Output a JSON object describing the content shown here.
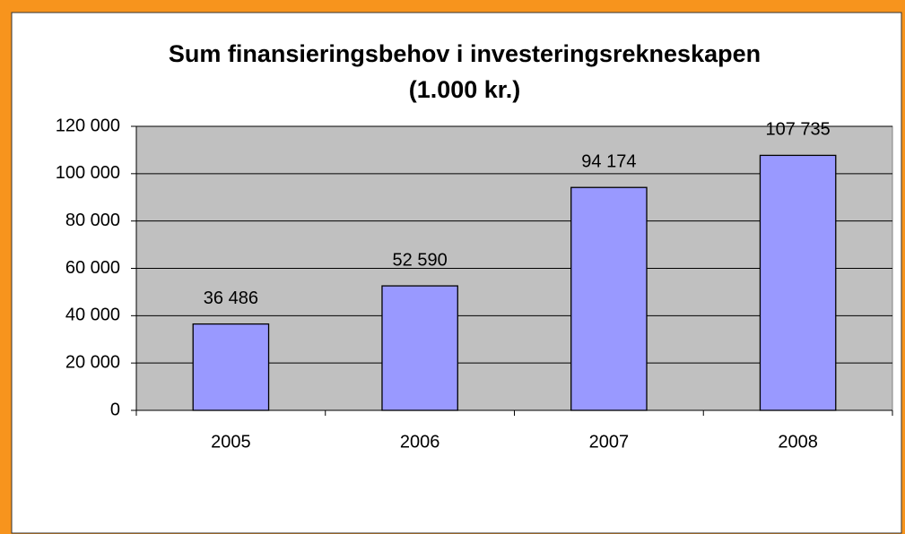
{
  "chart_data": {
    "type": "bar",
    "title": [
      "Sum finansieringsbehov i investeringsrekneskapen",
      "(1.000 kr.)"
    ],
    "categories": [
      "2005",
      "2006",
      "2007",
      "2008"
    ],
    "values": [
      36486,
      52590,
      94174,
      107735
    ],
    "value_labels": [
      "36 486",
      "52 590",
      "94 174",
      "107 735"
    ],
    "color": "#9999ff",
    "ylim": [
      0,
      120000
    ],
    "yticks": [
      0,
      {
        "value": 20000,
        "label": "20 000"
      },
      {
        "value": 40000,
        "label": "40 000"
      },
      {
        "value": 60000,
        "label": "60 000"
      },
      {
        "value": 80000,
        "label": "80 000"
      },
      {
        "value": 100000,
        "label": "100 000"
      },
      {
        "value": 120000,
        "label": "120 000"
      }
    ],
    "grid": true
  }
}
